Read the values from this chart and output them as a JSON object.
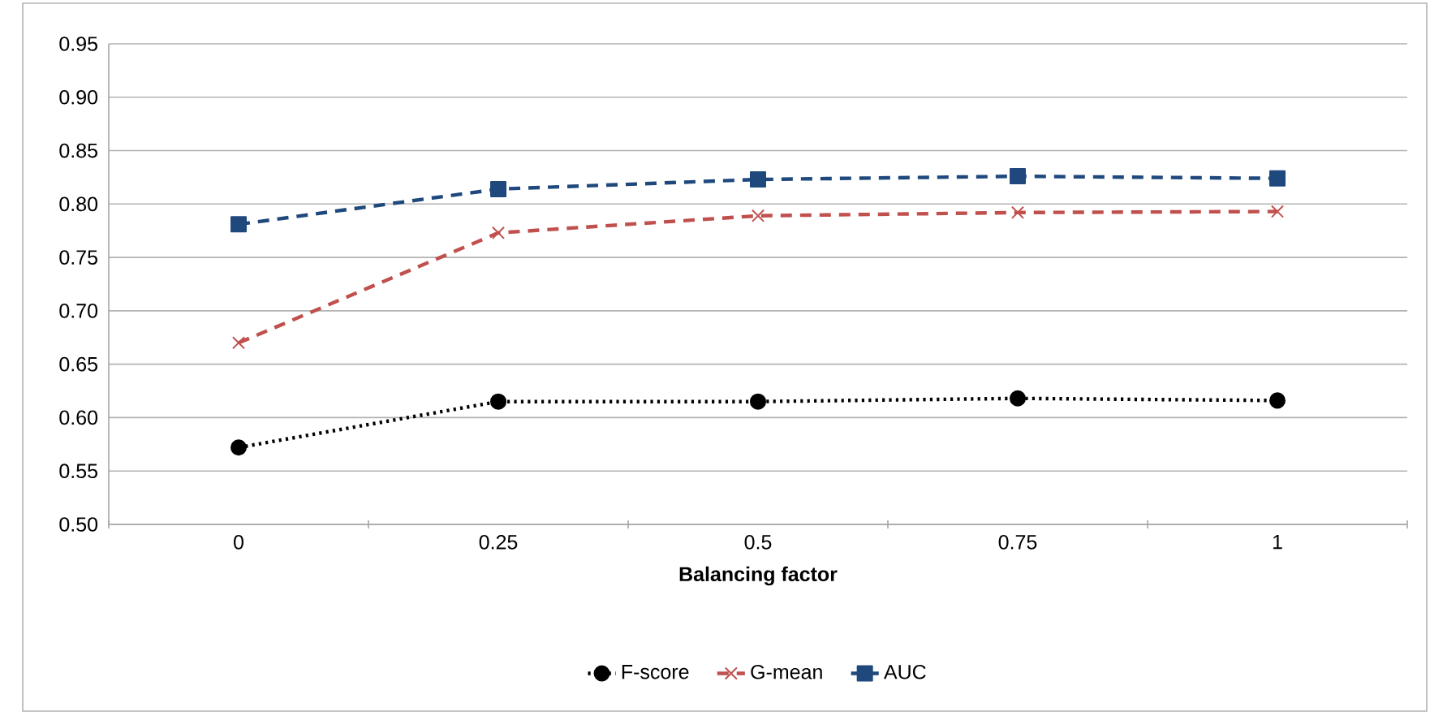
{
  "chart_data": {
    "type": "line",
    "xlabel": "Balancing factor",
    "categories": [
      "0",
      "0.25",
      "0.5",
      "0.75",
      "1"
    ],
    "series": [
      {
        "name": "F-score",
        "color": "#000000",
        "marker": "circle",
        "line_style": "dotted",
        "values": [
          0.572,
          0.615,
          0.615,
          0.618,
          0.616
        ]
      },
      {
        "name": "G-mean",
        "color": "#c0504d",
        "marker": "cross",
        "line_style": "dashed",
        "values": [
          0.67,
          0.773,
          0.789,
          0.792,
          0.793
        ]
      },
      {
        "name": "AUC",
        "color": "#1f497d",
        "marker": "square",
        "line_style": "dashed",
        "values": [
          0.781,
          0.814,
          0.823,
          0.826,
          0.824
        ]
      }
    ],
    "ylim": [
      0.5,
      0.95
    ],
    "yticks": [
      {
        "value": 0.5,
        "label": "0.50"
      },
      {
        "value": 0.55,
        "label": "0.55"
      },
      {
        "value": 0.6,
        "label": "0.60"
      },
      {
        "value": 0.65,
        "label": "0.65"
      },
      {
        "value": 0.7,
        "label": "0.70"
      },
      {
        "value": 0.75,
        "label": "0.75"
      },
      {
        "value": 0.8,
        "label": "0.80"
      },
      {
        "value": 0.85,
        "label": "0.85"
      },
      {
        "value": 0.9,
        "label": "0.90"
      },
      {
        "value": 0.95,
        "label": "0.95"
      }
    ],
    "grid": "y",
    "legend": "bottom"
  }
}
